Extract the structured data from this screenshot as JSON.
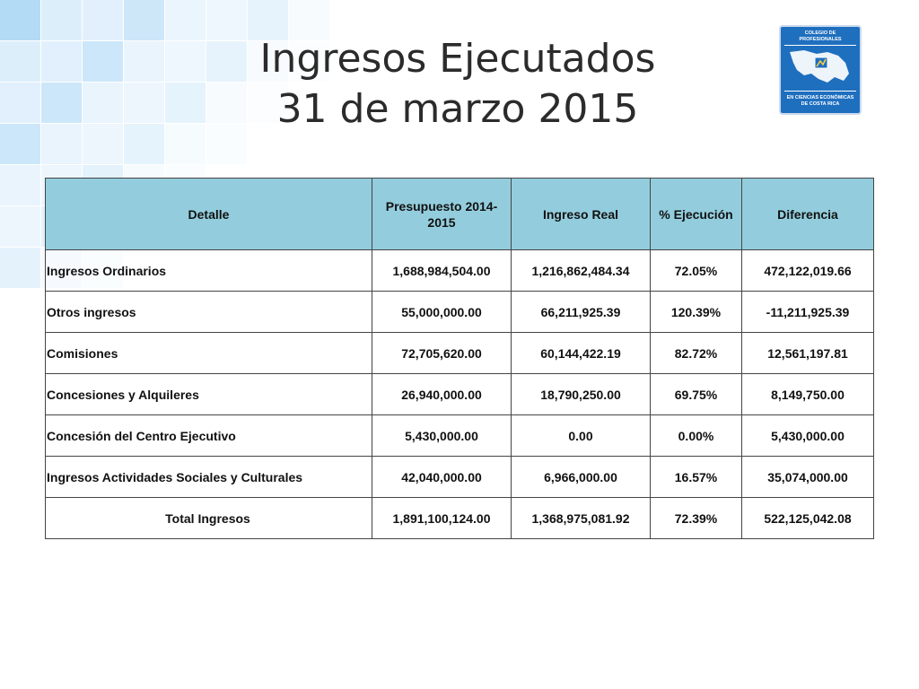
{
  "title": {
    "line1": "Ingresos Ejecutados",
    "line2": "31 de marzo 2015"
  },
  "logo": {
    "top_text": "COLEGIO DE PROFESIONALES",
    "bottom_text": "EN CIENCIAS ECONÓMICAS DE COSTA RICA"
  },
  "colors": {
    "header_bg": "#93cddd",
    "logo_bg": "#1f6fbf",
    "tile_light": "#d9ecfb",
    "tile_mid": "#b3dbf6"
  },
  "table": {
    "headers": [
      "Detalle",
      "Presupuesto 2014-2015",
      "Ingreso Real",
      "% Ejecución",
      "Diferencia"
    ],
    "rows": [
      [
        "Ingresos Ordinarios",
        "1,688,984,504.00",
        "1,216,862,484.34",
        "72.05%",
        "472,122,019.66"
      ],
      [
        "Otros ingresos",
        "55,000,000.00",
        "66,211,925.39",
        "120.39%",
        "-11,211,925.39"
      ],
      [
        "Comisiones",
        "72,705,620.00",
        "60,144,422.19",
        "82.72%",
        "12,561,197.81"
      ],
      [
        "Concesiones y Alquileres",
        "26,940,000.00",
        "18,790,250.00",
        "69.75%",
        "8,149,750.00"
      ],
      [
        "Concesión del Centro Ejecutivo",
        "5,430,000.00",
        "0.00",
        "0.00%",
        "5,430,000.00"
      ],
      [
        "Ingresos Actividades Sociales y Culturales",
        "42,040,000.00",
        "6,966,000.00",
        "16.57%",
        "35,074,000.00"
      ],
      [
        "Total Ingresos",
        "1,891,100,124.00",
        "1,368,975,081.92",
        "72.39%",
        "522,125,042.08"
      ]
    ]
  }
}
